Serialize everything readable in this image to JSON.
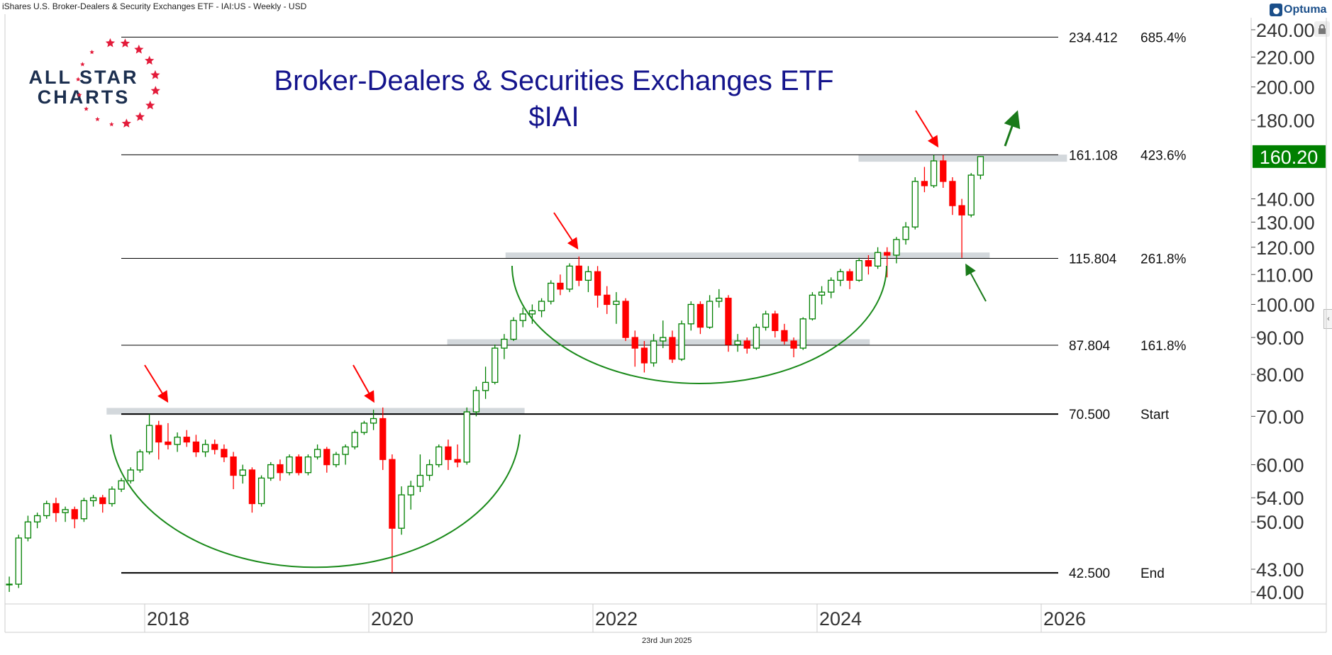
{
  "header": "iShares U.S. Broker-Dealers & Security Exchanges ETF - IAI:US - Weekly - USD",
  "brand": "Optuma",
  "logo_text": [
    "ALL STAR",
    "CHARTS"
  ],
  "footer_date": "23rd Jun 2025",
  "colors": {
    "up": "#008000",
    "down": "#ff0000",
    "title": "#14148c",
    "badge": "#008000",
    "zone": "#d3d8dc",
    "arc": "#1a8a1a"
  },
  "chart_data": {
    "type": "candlestick",
    "title": "Broker-Dealers & Securities Exchanges ETF",
    "subtitle": "$IAI",
    "y_scale": "log",
    "ylim": [
      40,
      240
    ],
    "y_ticks": [
      "240.00",
      "220.00",
      "200.00",
      "180.00",
      "140.00",
      "130.00",
      "120.00",
      "110.00",
      "100.00",
      "90.00",
      "80.00",
      "70.00",
      "60.00",
      "54.00",
      "50.00",
      "43.00",
      "40.00"
    ],
    "x_ticks": [
      "2018",
      "2020",
      "2022",
      "2024",
      "2026"
    ],
    "last_price": "160.20",
    "levels": [
      {
        "price": 234.412,
        "value": "234.412",
        "label": "685.4%"
      },
      {
        "price": 161.108,
        "value": "161.108",
        "label": "423.6%"
      },
      {
        "price": 115.804,
        "value": "115.804",
        "label": "261.8%"
      },
      {
        "price": 87.804,
        "value": "87.804",
        "label": "161.8%"
      },
      {
        "price": 70.5,
        "value": "70.500",
        "label": "Start"
      },
      {
        "price": 42.5,
        "value": "42.500",
        "label": "End"
      }
    ],
    "zones": [
      {
        "from": 2017.66,
        "to": 2021.39,
        "low": 70.4,
        "high": 71.9
      },
      {
        "from": 2020.7,
        "to": 2024.47,
        "low": 87.9,
        "high": 89.5
      },
      {
        "from": 2021.22,
        "to": 2025.54,
        "low": 115.7,
        "high": 118.0
      },
      {
        "from": 2024.37,
        "to": 2026.23,
        "low": 157.6,
        "high": 161.2
      }
    ],
    "start": "2016-10",
    "candles_ohlc_monthly": [
      [
        41,
        42,
        40,
        41
      ],
      [
        41,
        48,
        40.5,
        47.5
      ],
      [
        47.5,
        51,
        47,
        50
      ],
      [
        50,
        51.5,
        49,
        51
      ],
      [
        51,
        53.5,
        50.5,
        53
      ],
      [
        53,
        54,
        50,
        51.5
      ],
      [
        51.5,
        52.5,
        50,
        52
      ],
      [
        52,
        52.5,
        49,
        50.5
      ],
      [
        50.5,
        54,
        50,
        53.5
      ],
      [
        53.5,
        54.5,
        52.5,
        54
      ],
      [
        54,
        54.5,
        51.5,
        53
      ],
      [
        53,
        56,
        52.5,
        55.5
      ],
      [
        55.5,
        57.5,
        55,
        57
      ],
      [
        57,
        59.5,
        56.5,
        59
      ],
      [
        59,
        63,
        58.5,
        62.5
      ],
      [
        62.5,
        70.5,
        62,
        68
      ],
      [
        68,
        69,
        61,
        64.5
      ],
      [
        64.5,
        68.5,
        63,
        64
      ],
      [
        64,
        66.5,
        62.5,
        65.5
      ],
      [
        65.5,
        67,
        63.5,
        64.5
      ],
      [
        64.5,
        66,
        61.5,
        62.5
      ],
      [
        62.5,
        65,
        61.5,
        64
      ],
      [
        64,
        65,
        62,
        63
      ],
      [
        63,
        64,
        60.5,
        61.5
      ],
      [
        61.5,
        62.5,
        55.5,
        58
      ],
      [
        58,
        60,
        56.5,
        59
      ],
      [
        59,
        59.5,
        51.5,
        53
      ],
      [
        53,
        58,
        52.5,
        57.5
      ],
      [
        57.5,
        60.5,
        57,
        60
      ],
      [
        60,
        61,
        57,
        58.5
      ],
      [
        58.5,
        62,
        58,
        61.5
      ],
      [
        61.5,
        62,
        58,
        58.5
      ],
      [
        58.5,
        62,
        58,
        61.5
      ],
      [
        61.5,
        64,
        61,
        63
      ],
      [
        63,
        63.5,
        58.5,
        60
      ],
      [
        60,
        62.5,
        59.5,
        62
      ],
      [
        62,
        64,
        60,
        63.5
      ],
      [
        63.5,
        67,
        63,
        66.5
      ],
      [
        66.5,
        69,
        66,
        68.5
      ],
      [
        68.5,
        71.5,
        67,
        69.5
      ],
      [
        69.5,
        72,
        59,
        61
      ],
      [
        61,
        62,
        42.5,
        49
      ],
      [
        49,
        56,
        48,
        54.5
      ],
      [
        54.5,
        57,
        52,
        56
      ],
      [
        56,
        62,
        55,
        58
      ],
      [
        58,
        61,
        57,
        60
      ],
      [
        60,
        64,
        59.5,
        63.5
      ],
      [
        63.5,
        65,
        59,
        61
      ],
      [
        61,
        64,
        59.5,
        60.5
      ],
      [
        60.5,
        72,
        60,
        71
      ],
      [
        71,
        77,
        70,
        76
      ],
      [
        76,
        82,
        74,
        78
      ],
      [
        78,
        88,
        77.5,
        87
      ],
      [
        87,
        91,
        84,
        89.5
      ],
      [
        89.5,
        96,
        89,
        95
      ],
      [
        95,
        99,
        93,
        97
      ],
      [
        97,
        100,
        94,
        98
      ],
      [
        98,
        102,
        96,
        101
      ],
      [
        101,
        108,
        100,
        107
      ],
      [
        107,
        110,
        103,
        105
      ],
      [
        105,
        114,
        104,
        113
      ],
      [
        113,
        116.5,
        106,
        108
      ],
      [
        108,
        113,
        104,
        111
      ],
      [
        111,
        113,
        99,
        103
      ],
      [
        103,
        106,
        97,
        100
      ],
      [
        100,
        104,
        94,
        101
      ],
      [
        101,
        102,
        89,
        90
      ],
      [
        90,
        92,
        82,
        87
      ],
      [
        87,
        89,
        80.5,
        83
      ],
      [
        83,
        91,
        82,
        89
      ],
      [
        89,
        95,
        87,
        90
      ],
      [
        90,
        92,
        83,
        84
      ],
      [
        84,
        95,
        83.5,
        94
      ],
      [
        94,
        101,
        92,
        100
      ],
      [
        100,
        101,
        91,
        93
      ],
      [
        93,
        103,
        92.5,
        101
      ],
      [
        101,
        105,
        99,
        102
      ],
      [
        102,
        103,
        86,
        88
      ],
      [
        88,
        91,
        86,
        89
      ],
      [
        89,
        90,
        85.5,
        87
      ],
      [
        87,
        94,
        86.5,
        93
      ],
      [
        93,
        98,
        92,
        97
      ],
      [
        97,
        98,
        90,
        92
      ],
      [
        92,
        94,
        88,
        89
      ],
      [
        89,
        90,
        84.5,
        87
      ],
      [
        87,
        96,
        86.5,
        95.5
      ],
      [
        95.5,
        104,
        95,
        103
      ],
      [
        103,
        106,
        100,
        104
      ],
      [
        104,
        109,
        102,
        108
      ],
      [
        108,
        112,
        106,
        111
      ],
      [
        111,
        112,
        105,
        108
      ],
      [
        108,
        116,
        107.5,
        115
      ],
      [
        115,
        117,
        110,
        113
      ],
      [
        113,
        120,
        112,
        118
      ],
      [
        118,
        120,
        109,
        117
      ],
      [
        117,
        124,
        114,
        123
      ],
      [
        123,
        130,
        121,
        128
      ],
      [
        128,
        150,
        127,
        148
      ],
      [
        148,
        155,
        143,
        146
      ],
      [
        146,
        161,
        145,
        158
      ],
      [
        158,
        161,
        145,
        148
      ],
      [
        148,
        150,
        133,
        137
      ],
      [
        137,
        140,
        116,
        133
      ],
      [
        133,
        152,
        132,
        151
      ],
      [
        151,
        160.5,
        149,
        160.2
      ]
    ]
  }
}
